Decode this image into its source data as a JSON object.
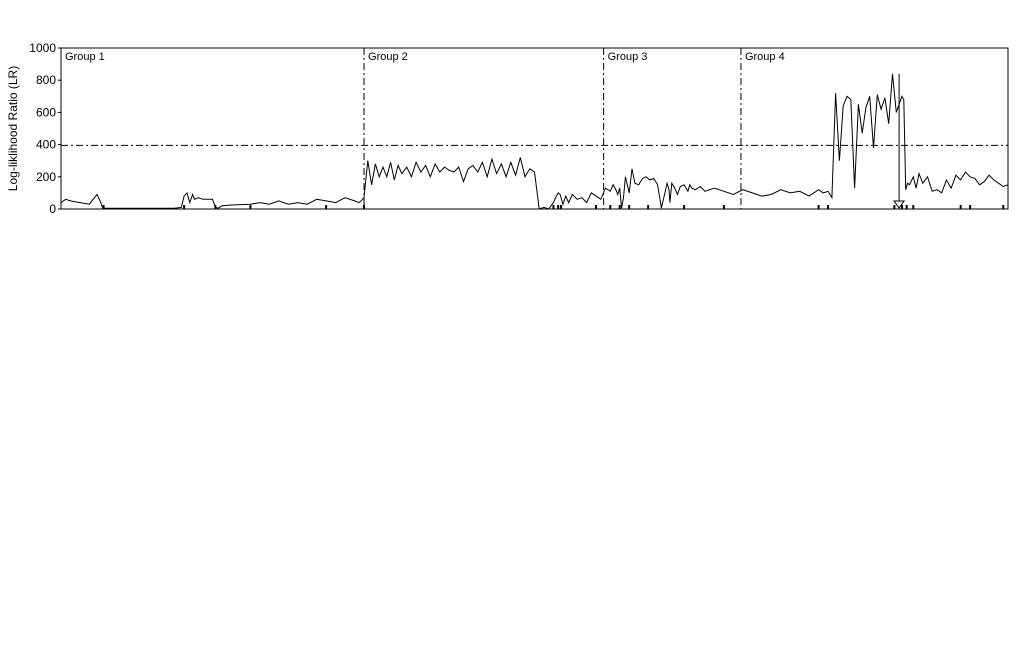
{
  "chart_data": {
    "type": "line",
    "title": "",
    "xlabel": "",
    "ylabel": "Log-liklihood Ratio (LR)",
    "ylim": [
      0,
      1000
    ],
    "xlim": [
      0,
      1000
    ],
    "yticks": [
      0,
      200,
      400,
      600,
      800,
      1000
    ],
    "threshold": 395,
    "groups": [
      {
        "label": "Group 1",
        "start": 0
      },
      {
        "label": "Group 2",
        "start": 320
      },
      {
        "label": "Group 3",
        "start": 573
      },
      {
        "label": "Group 4",
        "start": 718
      }
    ],
    "series": [
      {
        "name": "LR",
        "x": [
          0,
          5,
          10,
          20,
          30,
          38,
          42,
          44,
          47,
          60,
          80,
          100,
          120,
          127,
          130,
          133,
          136,
          139,
          141,
          145,
          150,
          160,
          163,
          166,
          170,
          180,
          200,
          210,
          220,
          230,
          240,
          250,
          260,
          270,
          280,
          290,
          300,
          310,
          315,
          320,
          324,
          328,
          332,
          336,
          340,
          344,
          348,
          352,
          356,
          360,
          365,
          370,
          375,
          380,
          385,
          390,
          395,
          400,
          405,
          410,
          415,
          420,
          425,
          430,
          435,
          440,
          445,
          450,
          455,
          460,
          465,
          470,
          475,
          480,
          485,
          490,
          495,
          500,
          505,
          510,
          515,
          520,
          523,
          525,
          527,
          530,
          533,
          536,
          540,
          545,
          550,
          555,
          560,
          565,
          570,
          575,
          580,
          583,
          586,
          588,
          590,
          592,
          594,
          596,
          600,
          603,
          606,
          610,
          614,
          618,
          622,
          626,
          630,
          634,
          640,
          642,
          643,
          645,
          648,
          651,
          654,
          658,
          662,
          664,
          666,
          670,
          675,
          680,
          685,
          690,
          700,
          710,
          720,
          730,
          740,
          750,
          760,
          770,
          780,
          790,
          800,
          805,
          810,
          812,
          814,
          818,
          822,
          826,
          830,
          834,
          838,
          842,
          846,
          850,
          854,
          858,
          862,
          866,
          870,
          874,
          878,
          882,
          885,
          888,
          890,
          892,
          894,
          896,
          900,
          903,
          906,
          910,
          915,
          920,
          925,
          930,
          935,
          940,
          945,
          950,
          955,
          960,
          965,
          970,
          975,
          980,
          985,
          990,
          995,
          1000
        ],
        "values": [
          40,
          60,
          50,
          40,
          30,
          90,
          40,
          5,
          5,
          5,
          5,
          5,
          5,
          10,
          80,
          100,
          40,
          90,
          60,
          70,
          60,
          60,
          10,
          5,
          20,
          25,
          30,
          40,
          30,
          50,
          30,
          40,
          30,
          60,
          50,
          40,
          70,
          50,
          40,
          70,
          300,
          150,
          280,
          200,
          260,
          200,
          290,
          180,
          270,
          220,
          260,
          200,
          290,
          230,
          270,
          200,
          280,
          230,
          260,
          240,
          230,
          260,
          170,
          250,
          270,
          230,
          290,
          200,
          310,
          220,
          280,
          200,
          290,
          210,
          320,
          200,
          250,
          230,
          0,
          10,
          0,
          40,
          80,
          100,
          90,
          30,
          80,
          40,
          90,
          60,
          70,
          40,
          100,
          80,
          60,
          130,
          110,
          150,
          120,
          90,
          130,
          5,
          70,
          200,
          100,
          250,
          160,
          150,
          190,
          200,
          180,
          190,
          150,
          5,
          160,
          120,
          40,
          160,
          130,
          90,
          140,
          150,
          110,
          150,
          130,
          120,
          140,
          110,
          120,
          130,
          110,
          90,
          120,
          100,
          80,
          90,
          120,
          100,
          110,
          80,
          120,
          100,
          110,
          90,
          70,
          720,
          300,
          640,
          700,
          680,
          130,
          650,
          470,
          630,
          700,
          380,
          710,
          620,
          690,
          530,
          840,
          600,
          650,
          700,
          680,
          120,
          160,
          150,
          200,
          130,
          220,
          160,
          200,
          110,
          120,
          100,
          180,
          130,
          210,
          180,
          230,
          200,
          190,
          150,
          170,
          210,
          180,
          160,
          140,
          150
        ]
      }
    ],
    "marker_x": 885,
    "bottom_ticks_x": [
      45,
      130,
      163,
      200,
      280,
      320,
      520,
      525,
      528,
      565,
      580,
      590,
      600,
      620,
      658,
      700,
      800,
      810,
      880,
      888,
      893,
      900,
      950,
      960,
      995
    ]
  }
}
